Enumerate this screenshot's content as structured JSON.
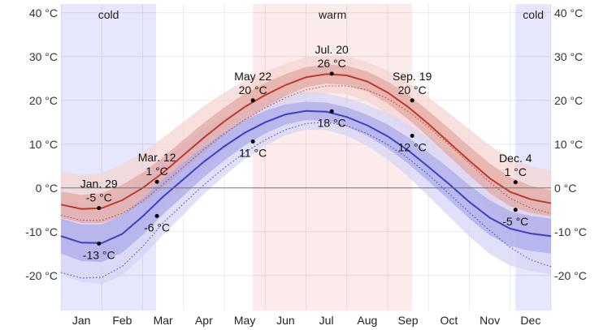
{
  "chart_data": {
    "type": "area",
    "xlim": [
      0,
      12
    ],
    "ylim": [
      -28,
      42
    ],
    "yticks": [
      {
        "value": 40,
        "label": "40 °C"
      },
      {
        "value": 30,
        "label": "30 °C"
      },
      {
        "value": 20,
        "label": "20 °C"
      },
      {
        "value": 10,
        "label": "10 °C"
      },
      {
        "value": 0,
        "label": "0 °C"
      },
      {
        "value": -10,
        "label": "-10 °C"
      },
      {
        "value": -20,
        "label": "-20 °C"
      }
    ],
    "months": [
      "Jan",
      "Feb",
      "Mar",
      "Apr",
      "May",
      "Jun",
      "Jul",
      "Aug",
      "Sep",
      "Oct",
      "Nov",
      "Dec"
    ],
    "seasons": [
      {
        "label": "cold",
        "start": 0.0,
        "end": 2.33,
        "color": "#e6e6fc"
      },
      {
        "label": "warm",
        "start": 4.7,
        "end": 8.6,
        "color": "#fcebeb"
      },
      {
        "label": "cold",
        "start": 11.13,
        "end": 12.0,
        "color": "#e6e6fc"
      }
    ],
    "x": [
      0,
      0.5,
      1,
      1.5,
      2,
      2.5,
      3,
      3.5,
      4,
      4.5,
      5,
      5.5,
      6,
      6.5,
      7,
      7.5,
      8,
      8.5,
      9,
      9.5,
      10,
      10.5,
      11,
      11.5,
      12
    ],
    "series": [
      {
        "role": "high",
        "color": "#c0392b",
        "values": [
          -3.8,
          -4.8,
          -4.6,
          -2.8,
          0,
          3.5,
          7.5,
          11.5,
          15.2,
          18.5,
          21.2,
          23.5,
          25.3,
          26.0,
          25.7,
          24.3,
          21.8,
          18.5,
          14.6,
          10.4,
          6.2,
          2.2,
          -0.9,
          -2.6,
          -3.5
        ],
        "band_inner": [
          3,
          3.2,
          3.4,
          3.5,
          3.5,
          3.5,
          3.5,
          3.4,
          3.2,
          3.0,
          2.8,
          2.5,
          2.3,
          2.2,
          2.2,
          2.3,
          2.5,
          2.8,
          3.0,
          3.2,
          3.3,
          3.4,
          3.3,
          3.1,
          3
        ],
        "band_outer": [
          7.5,
          7.8,
          8.0,
          8.2,
          8.2,
          8.0,
          7.6,
          7.2,
          6.6,
          6.0,
          5.4,
          4.9,
          4.5,
          4.3,
          4.3,
          4.5,
          4.9,
          5.5,
          6.1,
          6.7,
          7.2,
          7.5,
          7.6,
          7.6,
          7.5
        ],
        "band_colors": [
          "#e3a6a0",
          "#f4d6d3"
        ]
      },
      {
        "role": "low",
        "color": "#4040c0",
        "values": [
          -11.0,
          -12.5,
          -12.6,
          -10.5,
          -6.5,
          -2.0,
          2.0,
          6.0,
          9.5,
          12.6,
          15.0,
          16.8,
          17.6,
          17.4,
          16.2,
          14.3,
          11.8,
          8.6,
          4.8,
          0.9,
          -3.2,
          -6.8,
          -9.3,
          -10.4,
          -11.0
        ],
        "band_inner": [
          4,
          4.2,
          4.3,
          4.3,
          4.2,
          4.0,
          3.8,
          3.5,
          3.2,
          2.9,
          2.6,
          2.3,
          2.1,
          2.1,
          2.2,
          2.4,
          2.7,
          3.0,
          3.3,
          3.6,
          3.8,
          4.0,
          4.0,
          4.0,
          4
        ],
        "band_outer": [
          8.6,
          9.0,
          9.3,
          9.4,
          9.2,
          8.7,
          8.1,
          7.4,
          6.7,
          6.0,
          5.3,
          4.7,
          4.3,
          4.2,
          4.3,
          4.7,
          5.3,
          6.0,
          6.7,
          7.4,
          7.9,
          8.3,
          8.5,
          8.6,
          8.6
        ],
        "band_colors": [
          "#a8a8e8",
          "#d5d5f6"
        ]
      }
    ],
    "dotted": [
      {
        "color": "#c0392b",
        "values": [
          -6.2,
          -7.4,
          -7.4,
          -5.8,
          -3,
          0.8,
          4.8,
          8.8,
          12.4,
          15.6,
          18.3,
          20.6,
          22.4,
          23.3,
          23.3,
          22.4,
          20.4,
          17.5,
          13.9,
          9.9,
          5.6,
          1.3,
          -2.4,
          -4.6,
          -5.8
        ]
      },
      {
        "color": "#4040c0",
        "values": [
          -19.3,
          -20.6,
          -20.4,
          -17.9,
          -13.4,
          -8.0,
          -3.6,
          0.7,
          4.6,
          8.1,
          11.0,
          13.3,
          14.7,
          15.0,
          14.2,
          12.4,
          9.9,
          6.8,
          3.0,
          -1.3,
          -5.6,
          -9.7,
          -13.6,
          -16.4,
          -18.0
        ]
      }
    ],
    "annotations": [
      {
        "x": 0.93,
        "y": -4.6,
        "date": "Jan. 29",
        "temp": "-5 °C",
        "pos": "above",
        "color": "#c0392b"
      },
      {
        "x": 0.93,
        "y": -12.7,
        "date": "",
        "temp": "-13 °C",
        "pos": "below",
        "color": "#4040c0"
      },
      {
        "x": 2.35,
        "y": 1.4,
        "date": "Mar. 12",
        "temp": "1 °C",
        "pos": "above",
        "color": "#c0392b"
      },
      {
        "x": 2.35,
        "y": -6.4,
        "date": "",
        "temp": "-6 °C",
        "pos": "below",
        "color": "#4040c0"
      },
      {
        "x": 4.7,
        "y": 20.0,
        "date": "May 22",
        "temp": "20 °C",
        "pos": "above",
        "color": "#c0392b"
      },
      {
        "x": 4.7,
        "y": 10.6,
        "date": "",
        "temp": "11 °C",
        "pos": "below",
        "color": "#4040c0"
      },
      {
        "x": 6.63,
        "y": 26.1,
        "date": "Jul. 20",
        "temp": "26 °C",
        "pos": "above",
        "color": "#c0392b"
      },
      {
        "x": 6.63,
        "y": 17.5,
        "date": "",
        "temp": "18 °C",
        "pos": "below",
        "color": "#4040c0"
      },
      {
        "x": 8.6,
        "y": 20.0,
        "date": "Sep. 19",
        "temp": "20 °C",
        "pos": "above",
        "color": "#c0392b"
      },
      {
        "x": 8.6,
        "y": 11.9,
        "date": "",
        "temp": "12 °C",
        "pos": "below",
        "color": "#4040c0"
      },
      {
        "x": 11.13,
        "y": 1.3,
        "date": "Dec. 4",
        "temp": "1 °C",
        "pos": "above",
        "color": "#c0392b"
      },
      {
        "x": 11.13,
        "y": -5.0,
        "date": "",
        "temp": "-5 °C",
        "pos": "below",
        "color": "#4040c0"
      }
    ]
  }
}
